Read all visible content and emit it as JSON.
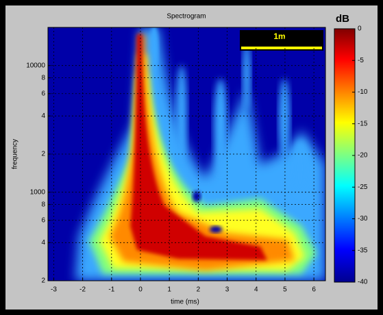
{
  "chart_data": {
    "type": "spectrogram",
    "title": "Spectrogram",
    "x_label": "time (ms)",
    "y_label": "frequency",
    "xlim": [
      -3.2,
      6.4
    ],
    "xticks": [
      -3,
      -2,
      -1,
      0,
      1,
      2,
      3,
      4,
      5,
      6
    ],
    "ylim": [
      200,
      20000
    ],
    "y_scale": "log",
    "yticks": [
      {
        "value": 200,
        "label": "2"
      },
      {
        "value": 400,
        "label": "4"
      },
      {
        "value": 600,
        "label": "6"
      },
      {
        "value": 800,
        "label": "8"
      },
      1000,
      {
        "value": 2000,
        "label": "2"
      },
      {
        "value": 4000,
        "label": "4"
      },
      {
        "value": 6000,
        "label": "6"
      },
      {
        "value": 8000,
        "label": "8"
      },
      10000
    ],
    "grid": true,
    "colorbar": {
      "label": "dB",
      "lim": [
        -40,
        0
      ],
      "ticks": [
        0,
        -5,
        -10,
        -15,
        -20,
        -25,
        -30,
        -35,
        -40
      ]
    },
    "annotation": "1m"
  }
}
